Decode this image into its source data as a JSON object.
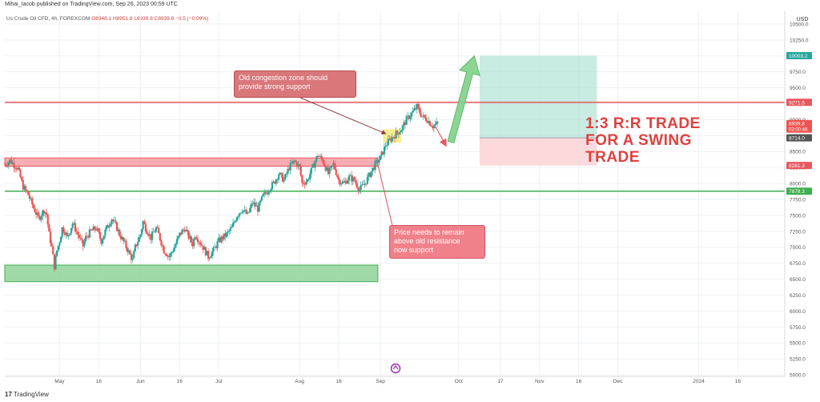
{
  "header": {
    "published": "Mihai_Iacob published on TradingView.com, Sep 26, 2023 00:59 UTC",
    "symbol": "Us Crude Oil CFD, 4h, FOREXCOM",
    "ohlc": "O8948.1 H8951.8 L8939.8 C8939.8 −8.5 (−0.09%)"
  },
  "footer": {
    "logo": "TradingView"
  },
  "colors": {
    "up": "#26a69a",
    "down": "#ef5350",
    "resistance": "#e8575e",
    "support": "#3fae50",
    "target_zone": "#b5e4d8",
    "stop_zone": "#fbd3d6",
    "congestion": "#f6ec8a"
  },
  "annotations": {
    "big_text": [
      "1:3 R:R TRADE",
      "FOR A SWING",
      "TRADE"
    ],
    "callout_congestion": [
      "Old congestion zone should",
      "provide strong support"
    ],
    "callout_price": [
      "Price needs to remain",
      "above old resistance",
      "now support"
    ]
  },
  "chart_data": {
    "type": "candlestick",
    "currency": "USD",
    "y_ticks": [
      "10500.0",
      "10250.0",
      "10000.0",
      "9750.0",
      "9500.0",
      "9250.0",
      "9000.0",
      "8750.0",
      "8500.0",
      "8250.0",
      "8000.0",
      "7750.0",
      "7500.0",
      "7250.0",
      "7000.0",
      "6750.0",
      "6500.0",
      "6250.0",
      "6000.0",
      "5750.0",
      "5500.0",
      "5250.0",
      "5000.0"
    ],
    "ylim": [
      5000,
      10700
    ],
    "x_ticks": [
      {
        "label": "May",
        "t": 0
      },
      {
        "label": "16",
        "t": 15
      },
      {
        "label": "Jun",
        "t": 31
      },
      {
        "label": "16",
        "t": 46
      },
      {
        "label": "Jul",
        "t": 61
      },
      {
        "label": "Aug",
        "t": 92
      },
      {
        "label": "16",
        "t": 107
      },
      {
        "label": "Sep",
        "t": 123
      },
      {
        "label": "Oct",
        "t": 153
      },
      {
        "label": "17",
        "t": 169
      },
      {
        "label": "Nov",
        "t": 184
      },
      {
        "label": "16",
        "t": 199
      },
      {
        "label": "Dec",
        "t": 214
      },
      {
        "label": "2024",
        "t": 245
      },
      {
        "label": "16",
        "t": 260
      }
    ],
    "xlim": [
      -21,
      278
    ],
    "price_labels": [
      {
        "text": "10003.2",
        "value": 10003.2,
        "color": "#26a69a"
      },
      {
        "text": "9271.5",
        "value": 9271.5,
        "color": "#e8575e"
      },
      {
        "text": "8939.8",
        "sub": "03:00:48",
        "value": 8939.8,
        "color": "#ef5350"
      },
      {
        "text": "8714.0",
        "value": 8714.0,
        "color": "#555555"
      },
      {
        "text": "8281.3",
        "value": 8281.3,
        "color": "#e8575e"
      },
      {
        "text": "7878.3",
        "value": 7878.3,
        "color": "#3fae50"
      }
    ],
    "levels": [
      {
        "name": "resistance-line",
        "value": 9271.5
      },
      {
        "name": "support-line",
        "value": 7878.3
      }
    ],
    "zones": {
      "resistance_band": {
        "t": [
          -21,
          122
        ],
        "y": [
          8270,
          8400
        ]
      },
      "support_band": {
        "t": [
          -21,
          122
        ],
        "y": [
          6460,
          6720
        ]
      },
      "congestion_box": {
        "t": [
          124,
          131
        ],
        "y": [
          8640,
          8850
        ]
      },
      "target_zone": {
        "t": [
          161,
          206
        ],
        "y": [
          8714,
          10003.2
        ]
      },
      "stop_zone": {
        "t": [
          161,
          206
        ],
        "y": [
          8281.3,
          8714
        ]
      }
    },
    "price_path": [
      [
        -21,
        8300
      ],
      [
        -19,
        8360
      ],
      [
        -16,
        8230
      ],
      [
        -14,
        7950
      ],
      [
        -12,
        7820
      ],
      [
        -10,
        7620
      ],
      [
        -8,
        7450
      ],
      [
        -6,
        7580
      ],
      [
        -5,
        7520
      ],
      [
        -4,
        7200
      ],
      [
        -3,
        7000
      ],
      [
        -2,
        6700
      ],
      [
        -1,
        6950
      ],
      [
        0,
        7100
      ],
      [
        1,
        7300
      ],
      [
        2,
        7250
      ],
      [
        3,
        7150
      ],
      [
        5,
        7380
      ],
      [
        7,
        7200
      ],
      [
        9,
        7020
      ],
      [
        10,
        7150
      ],
      [
        12,
        7250
      ],
      [
        14,
        7300
      ],
      [
        16,
        7100
      ],
      [
        18,
        7300
      ],
      [
        20,
        7450
      ],
      [
        22,
        7300
      ],
      [
        23,
        7200
      ],
      [
        25,
        7050
      ],
      [
        27,
        6880
      ],
      [
        28,
        6800
      ],
      [
        29,
        7000
      ],
      [
        31,
        7200
      ],
      [
        32,
        7400
      ],
      [
        33,
        7300
      ],
      [
        35,
        7150
      ],
      [
        37,
        7300
      ],
      [
        38,
        7200
      ],
      [
        40,
        6950
      ],
      [
        42,
        6850
      ],
      [
        44,
        7000
      ],
      [
        46,
        7200
      ],
      [
        48,
        7300
      ],
      [
        49,
        7200
      ],
      [
        51,
        7050
      ],
      [
        52,
        7200
      ],
      [
        55,
        7000
      ],
      [
        57,
        6850
      ],
      [
        59,
        6950
      ],
      [
        61,
        7100
      ],
      [
        64,
        7200
      ],
      [
        66,
        7300
      ],
      [
        68,
        7500
      ],
      [
        70,
        7600
      ],
      [
        72,
        7500
      ],
      [
        74,
        7700
      ],
      [
        76,
        7600
      ],
      [
        78,
        7800
      ],
      [
        80,
        7900
      ],
      [
        82,
        8000
      ],
      [
        84,
        8150
      ],
      [
        86,
        8050
      ],
      [
        88,
        8250
      ],
      [
        90,
        8350
      ],
      [
        92,
        8250
      ],
      [
        93,
        8000
      ],
      [
        95,
        8050
      ],
      [
        97,
        8250
      ],
      [
        99,
        8450
      ],
      [
        101,
        8350
      ],
      [
        103,
        8150
      ],
      [
        105,
        8300
      ],
      [
        107,
        8050
      ],
      [
        109,
        8000
      ],
      [
        111,
        8100
      ],
      [
        113,
        8050
      ],
      [
        115,
        7900
      ],
      [
        117,
        8000
      ],
      [
        119,
        8150
      ],
      [
        121,
        8300
      ],
      [
        123,
        8400
      ],
      [
        125,
        8600
      ],
      [
        127,
        8700
      ],
      [
        129,
        8780
      ],
      [
        131,
        8850
      ],
      [
        133,
        9000
      ],
      [
        135,
        9100
      ],
      [
        137,
        9200
      ],
      [
        139,
        9050
      ],
      [
        141,
        9000
      ],
      [
        143,
        8900
      ],
      [
        145,
        8940
      ]
    ],
    "projection": {
      "from": [
        144,
        8900
      ],
      "to": [
        148,
        8600
      ]
    },
    "arrow_up": {
      "from": [
        150,
        8650
      ],
      "to": [
        159,
        10000
      ]
    },
    "congestion_pointer": {
      "from": [
        108,
        9650
      ],
      "to": [
        125,
        8780
      ]
    },
    "price_pointer": {
      "from": [
        122,
        8300
      ],
      "to": [
        123,
        7050
      ]
    }
  }
}
